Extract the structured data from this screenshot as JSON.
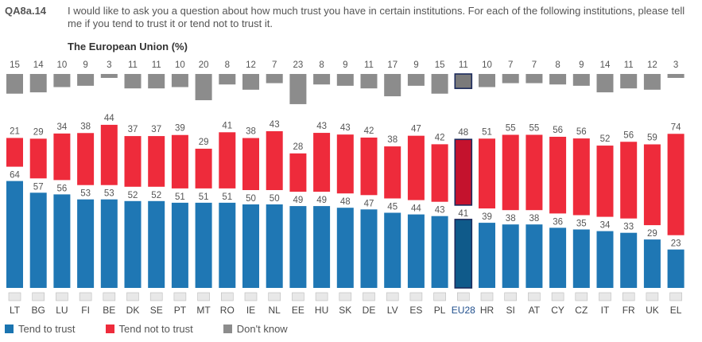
{
  "header": {
    "qid": "QA8a.14",
    "question": "I would like to ask you a question about how much trust you have in certain institutions. For each of the following institutions, please tell me if you tend to trust it or tend not to trust it.",
    "subtitle": "The European Union  (%)"
  },
  "chart_data": {
    "type": "bar",
    "stacked": true,
    "categories": [
      "LT",
      "BG",
      "LU",
      "FI",
      "BE",
      "DK",
      "SE",
      "PT",
      "MT",
      "RO",
      "IE",
      "NL",
      "EE",
      "HU",
      "SK",
      "DE",
      "LV",
      "ES",
      "PL",
      "EU28",
      "HR",
      "SI",
      "AT",
      "CY",
      "CZ",
      "IT",
      "FR",
      "UK",
      "EL"
    ],
    "series": [
      {
        "name": "Tend to trust",
        "color": "#1f77b4",
        "values": [
          64,
          57,
          56,
          53,
          53,
          52,
          52,
          51,
          51,
          51,
          50,
          50,
          49,
          49,
          48,
          47,
          45,
          44,
          43,
          41,
          39,
          38,
          38,
          36,
          35,
          34,
          33,
          29,
          23
        ]
      },
      {
        "name": "Tend not to trust",
        "color": "#ee2b3b",
        "values": [
          21,
          29,
          34,
          38,
          44,
          37,
          37,
          39,
          29,
          41,
          38,
          43,
          28,
          43,
          43,
          42,
          38,
          47,
          42,
          48,
          51,
          55,
          55,
          56,
          56,
          52,
          56,
          59,
          74
        ]
      },
      {
        "name": "Don't know",
        "color": "#8c8c8c",
        "values": [
          15,
          14,
          10,
          9,
          3,
          11,
          11,
          10,
          20,
          8,
          12,
          7,
          23,
          8,
          9,
          11,
          17,
          9,
          15,
          11,
          10,
          7,
          7,
          8,
          9,
          14,
          11,
          12,
          3
        ]
      }
    ],
    "highlight": "EU28"
  },
  "flags": [
    "lithuania-flag",
    "bulgaria-flag",
    "luxembourg-flag",
    "finland-flag",
    "belgium-flag",
    "denmark-flag",
    "sweden-flag",
    "portugal-flag",
    "malta-flag",
    "romania-flag",
    "ireland-flag",
    "netherlands-flag",
    "estonia-flag",
    "hungary-flag",
    "slovakia-flag",
    "germany-flag",
    "latvia-flag",
    "spain-flag",
    "poland-flag",
    "eu-flag",
    "croatia-flag",
    "slovenia-flag",
    "austria-flag",
    "cyprus-flag",
    "czechia-flag",
    "italy-flag",
    "france-flag",
    "uk-flag",
    "greece-flag"
  ],
  "legend": [
    {
      "label": "Tend to trust",
      "color": "#1a74b0"
    },
    {
      "label": "Tend not to trust",
      "color": "#ee2b3b"
    },
    {
      "label": "Don't know",
      "color": "#8c8c8c"
    }
  ]
}
